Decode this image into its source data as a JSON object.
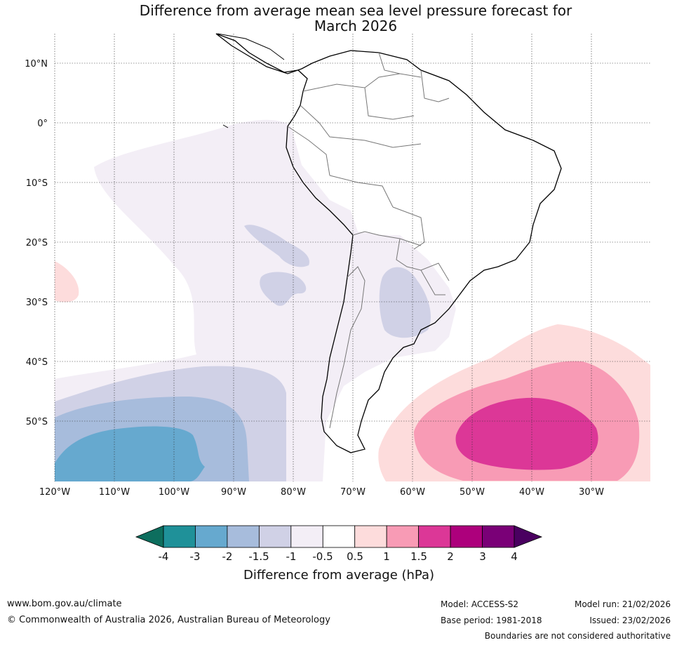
{
  "title": {
    "line1": "Difference from average mean sea level pressure forecast for",
    "line2": "March 2026"
  },
  "map": {
    "region": "South America",
    "lat_labels": [
      "10°N",
      "0°",
      "10°S",
      "20°S",
      "30°S",
      "40°S",
      "50°S"
    ],
    "lon_labels": [
      "120°W",
      "110°W",
      "100°W",
      "90°W",
      "80°W",
      "70°W",
      "60°W",
      "50°W",
      "40°W",
      "30°W"
    ]
  },
  "colorbar": {
    "title": "Difference from average (hPa)",
    "tick_labels": [
      "-4",
      "-3",
      "-2",
      "-1.5",
      "-1",
      "-0.5",
      "0.5",
      "1",
      "1.5",
      "2",
      "3",
      "4"
    ],
    "colors": {
      "below_min": "#0d6e5e",
      "bins": [
        "#1f9199",
        "#66a9cf",
        "#a7bcdc",
        "#d0d1e6",
        "#f3eef6",
        "#ffffff",
        "#fddcdc",
        "#f89bb5",
        "#dc3797",
        "#ad007c",
        "#7a0077"
      ],
      "above_max": "#4a0060"
    }
  },
  "footer": {
    "website": "www.bom.gov.au/climate",
    "copyright": "© Commonwealth of Australia 2026, Australian Bureau of Meteorology",
    "model": "Model: ACCESS-S2",
    "base_period": "Base period: 1981-2018",
    "model_run": "Model run: 21/02/2026",
    "issued": "Issued: 23/02/2026",
    "disclaimer": "Boundaries are not considered authoritative"
  }
}
